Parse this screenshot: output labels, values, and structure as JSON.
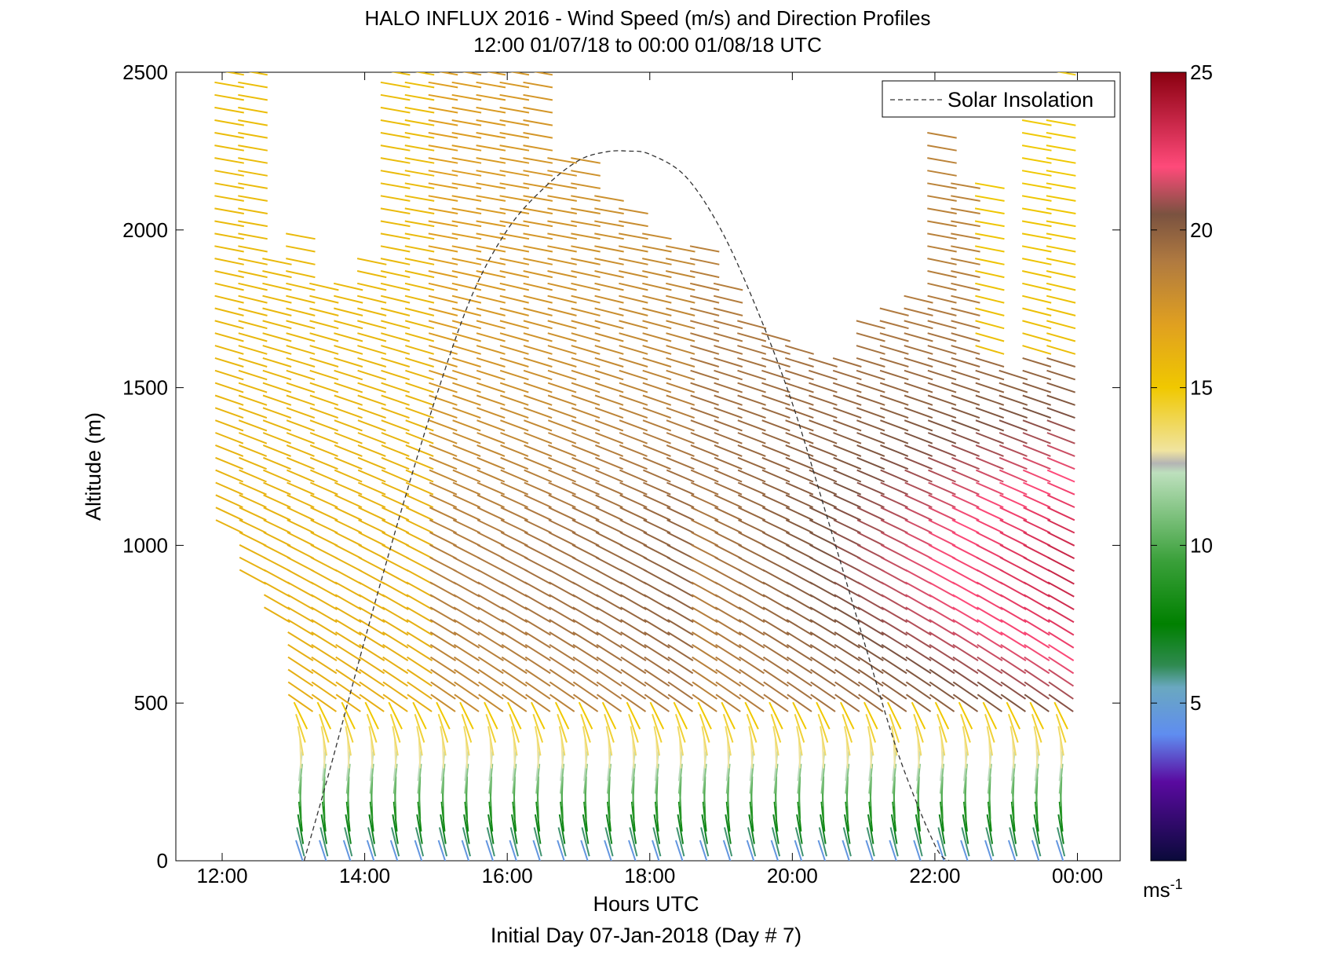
{
  "chart_data": {
    "type": "quiver",
    "title": "HALO INFLUX 2016 - Wind Speed (m/s) and Direction Profiles",
    "subtitle": "12:00 01/07/18 to 00:00 01/08/18  UTC",
    "xlabel": "Hours UTC",
    "ylabel": "Altitude (m)",
    "footer": "Initial Day 07-Jan-2018 (Day # 7)",
    "x_ticks": [
      "12:00",
      "14:00",
      "16:00",
      "18:00",
      "20:00",
      "22:00",
      "00:00"
    ],
    "x_tick_values": [
      12,
      14,
      16,
      18,
      20,
      22,
      24
    ],
    "xlim": [
      11.35,
      24.6
    ],
    "y_ticks": [
      "0",
      "500",
      "1000",
      "1500",
      "2000",
      "2500"
    ],
    "y_tick_values": [
      0,
      500,
      1000,
      1500,
      2000,
      2500
    ],
    "ylim": [
      0,
      2500
    ],
    "legend": {
      "entries": [
        "Solar Insolation"
      ],
      "location": "top-right",
      "line_style": "dashed"
    },
    "colorbar": {
      "unit_label": "ms",
      "unit_exponent": "-1",
      "ticks": [
        "5",
        "10",
        "15",
        "20",
        "25"
      ],
      "tick_values": [
        5,
        10,
        15,
        20,
        25
      ],
      "range": [
        0,
        25
      ],
      "stops": [
        {
          "v": 0,
          "c": "#0a0a3a"
        },
        {
          "v": 2.5,
          "c": "#5a0aa0"
        },
        {
          "v": 4,
          "c": "#5f8df0"
        },
        {
          "v": 5.5,
          "c": "#6aa8c0"
        },
        {
          "v": 6.2,
          "c": "#2f8a50"
        },
        {
          "v": 7.5,
          "c": "#008000"
        },
        {
          "v": 9.5,
          "c": "#3aa03a"
        },
        {
          "v": 12.3,
          "c": "#bde0bd"
        },
        {
          "v": 12.6,
          "c": "#b4b4b4"
        },
        {
          "v": 13,
          "c": "#f0e4a0"
        },
        {
          "v": 15,
          "c": "#f0c800"
        },
        {
          "v": 17,
          "c": "#e0a020"
        },
        {
          "v": 19,
          "c": "#b07a40"
        },
        {
          "v": 20.5,
          "c": "#7a5240"
        },
        {
          "v": 22,
          "c": "#ff4a7a"
        },
        {
          "v": 25,
          "c": "#8a0010"
        }
      ]
    },
    "solar_insolation_curve": {
      "hours": [
        13.15,
        13.5,
        14.0,
        14.5,
        15.0,
        15.5,
        16.0,
        16.5,
        17.0,
        17.4,
        17.7,
        18.0,
        18.5,
        19.0,
        19.5,
        20.0,
        20.5,
        21.0,
        21.5,
        22.0,
        22.2
      ],
      "values": [
        0,
        280,
        700,
        1100,
        1470,
        1790,
        2000,
        2130,
        2220,
        2248,
        2250,
        2240,
        2170,
        2000,
        1750,
        1450,
        1080,
        700,
        330,
        50,
        0
      ]
    },
    "time_hours": [
      12.1,
      12.43,
      12.77,
      13.1,
      13.43,
      13.77,
      14.1,
      14.43,
      14.77,
      15.1,
      15.43,
      15.77,
      16.1,
      16.43,
      16.77,
      17.1,
      17.43,
      17.77,
      18.1,
      18.43,
      18.77,
      19.1,
      19.43,
      19.77,
      20.1,
      20.43,
      20.77,
      21.1,
      21.43,
      21.77,
      22.1,
      22.43,
      22.77,
      23.1,
      23.43,
      23.77
    ],
    "altitudes_m": [
      20,
      60,
      100,
      140,
      180,
      220,
      260,
      300,
      340,
      380,
      420,
      460,
      500,
      540,
      580,
      620,
      660,
      700,
      740,
      780,
      820,
      860,
      900,
      940,
      980,
      1020,
      1060,
      1100,
      1140,
      1180,
      1220,
      1260,
      1300,
      1340,
      1380,
      1420,
      1460,
      1500,
      1540,
      1580,
      1620,
      1660,
      1700,
      1740,
      1780,
      1820,
      1860,
      1900,
      1940,
      1980,
      2020,
      2060,
      2100,
      2140,
      2180,
      2220,
      2260,
      2300,
      2340,
      2380,
      2420,
      2460,
      2500
    ],
    "wind_field_summary": {
      "near_surface_speed_range_ms": [
        4,
        12
      ],
      "near_surface_direction": "southward / southwestward",
      "aloft_speed_range_ms": [
        14,
        23
      ],
      "aloft_direction": "eastward to east-northeastward",
      "max_speed_region": "500-1200 m after 19:00 (about 21-23 m/s)"
    }
  }
}
